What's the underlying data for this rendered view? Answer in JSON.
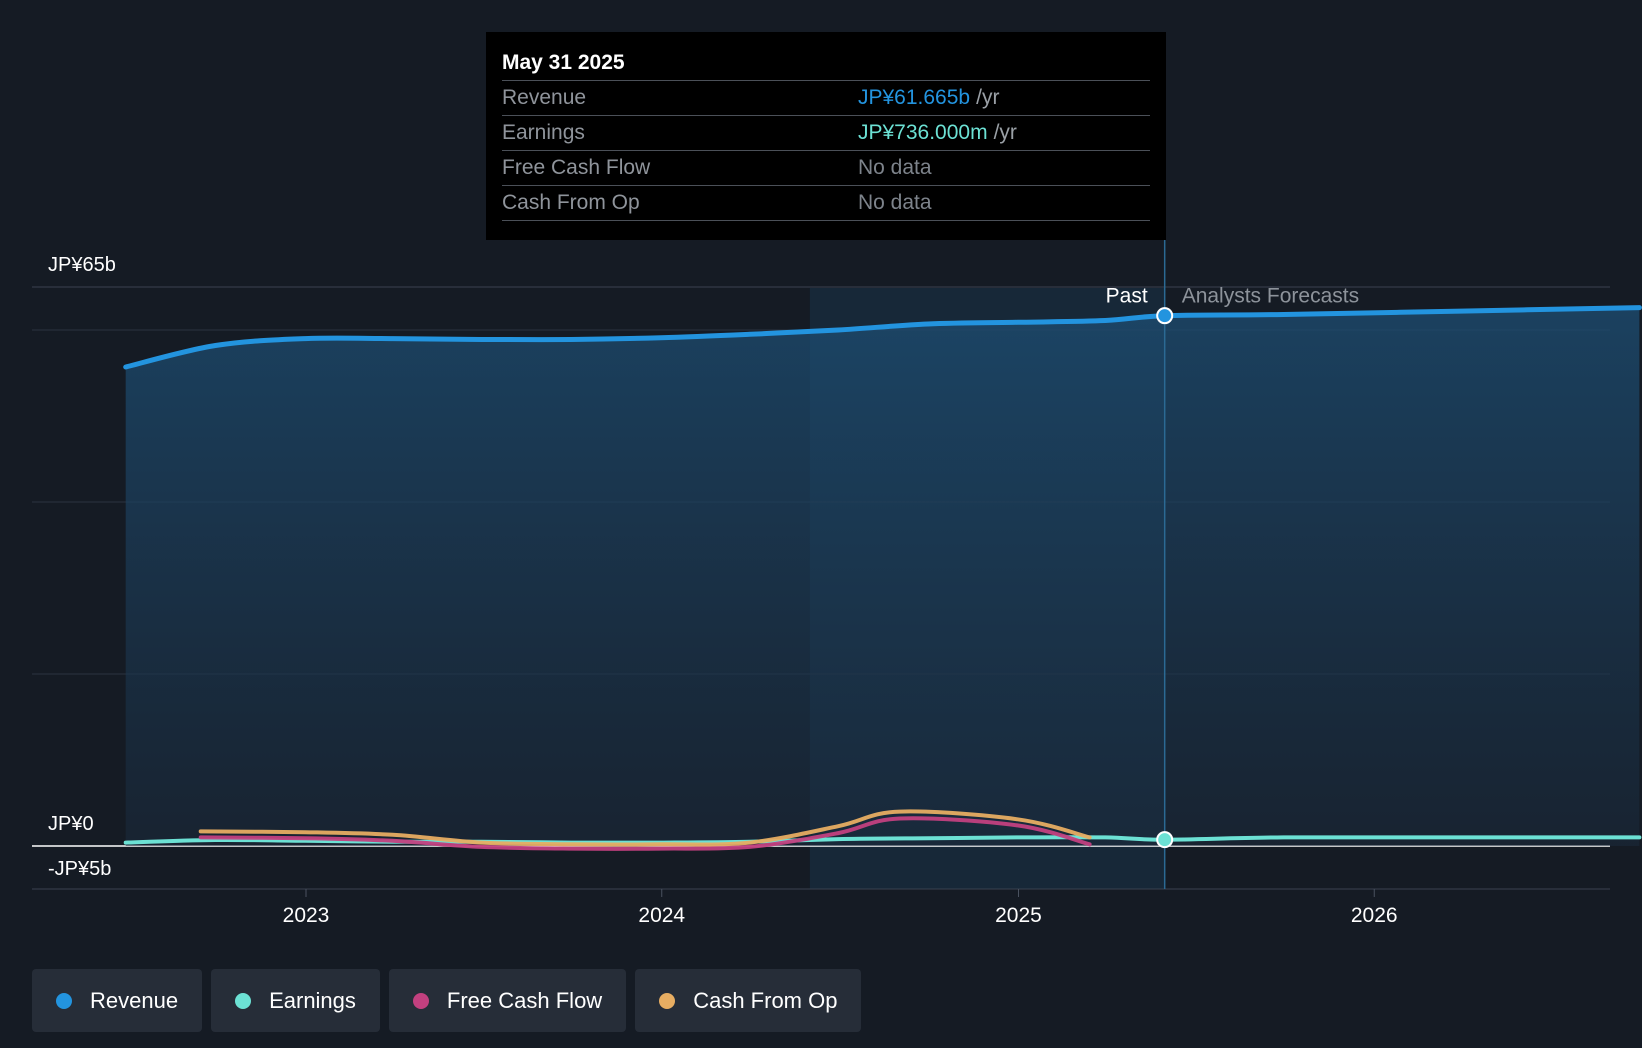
{
  "tooltip": {
    "date": "May 31 2025",
    "rows": [
      {
        "label": "Revenue",
        "value": "JP¥61.665b",
        "unit": "/yr",
        "color": "#2394df"
      },
      {
        "label": "Earnings",
        "value": "JP¥736.000m",
        "unit": "/yr",
        "color": "#6ce1d4"
      },
      {
        "label": "Free Cash Flow",
        "value": "No data",
        "unit": "",
        "color": "#7d838b"
      },
      {
        "label": "Cash From Op",
        "value": "No data",
        "unit": "",
        "color": "#7d838b"
      }
    ]
  },
  "legend": [
    {
      "label": "Revenue",
      "color": "#2394df"
    },
    {
      "label": "Earnings",
      "color": "#6ce1d4"
    },
    {
      "label": "Free Cash Flow",
      "color": "#c2407f"
    },
    {
      "label": "Cash From Op",
      "color": "#e7ad62"
    }
  ],
  "chart_data": {
    "type": "area",
    "x_type": "date",
    "x_ticks": [
      "2023",
      "2024",
      "2025",
      "2026"
    ],
    "y_labels": [
      "JP¥65b",
      "JP¥0",
      "-JP¥5b"
    ],
    "ylim": [
      -5,
      65
    ],
    "y_unit": "JP¥b",
    "past_label": "Past",
    "forecast_label": "Analysts Forecasts",
    "past_end": "2025-05-31",
    "highlight_start": "2024-06-01",
    "series": [
      {
        "name": "Revenue",
        "color": "#2394df",
        "points": [
          [
            "2022-06-30",
            55.7
          ],
          [
            "2022-09-30",
            58.2
          ],
          [
            "2022-12-31",
            59.0
          ],
          [
            "2023-03-31",
            59.0
          ],
          [
            "2023-06-30",
            58.9
          ],
          [
            "2023-09-30",
            58.9
          ],
          [
            "2023-12-31",
            59.1
          ],
          [
            "2024-03-31",
            59.5
          ],
          [
            "2024-06-30",
            60.0
          ],
          [
            "2024-09-30",
            60.7
          ],
          [
            "2024-12-31",
            60.9
          ],
          [
            "2025-03-31",
            61.1
          ],
          [
            "2025-05-31",
            61.665
          ],
          [
            "2025-09-30",
            61.8
          ],
          [
            "2026-03-31",
            62.2
          ],
          [
            "2026-09-30",
            62.6
          ]
        ]
      },
      {
        "name": "Earnings",
        "color": "#6ce1d4",
        "points": [
          [
            "2022-06-30",
            0.4
          ],
          [
            "2022-09-30",
            0.7
          ],
          [
            "2022-12-31",
            0.6
          ],
          [
            "2023-03-31",
            0.5
          ],
          [
            "2023-06-30",
            0.5
          ],
          [
            "2023-09-30",
            0.4
          ],
          [
            "2023-12-31",
            0.4
          ],
          [
            "2024-03-31",
            0.5
          ],
          [
            "2024-06-30",
            0.8
          ],
          [
            "2024-09-30",
            0.9
          ],
          [
            "2024-12-31",
            1.0
          ],
          [
            "2025-03-31",
            1.0
          ],
          [
            "2025-05-31",
            0.736
          ],
          [
            "2025-09-30",
            1.0
          ],
          [
            "2026-03-31",
            1.0
          ],
          [
            "2026-09-30",
            1.0
          ]
        ]
      },
      {
        "name": "Free Cash Flow",
        "color": "#c2407f",
        "points": [
          [
            "2022-09-15",
            1.0
          ],
          [
            "2022-12-31",
            0.9
          ],
          [
            "2023-03-31",
            0.6
          ],
          [
            "2023-06-30",
            -0.1
          ],
          [
            "2023-09-30",
            -0.3
          ],
          [
            "2023-12-31",
            -0.3
          ],
          [
            "2024-03-31",
            -0.1
          ],
          [
            "2024-06-30",
            1.5
          ],
          [
            "2024-09-01",
            3.2
          ],
          [
            "2024-12-31",
            2.4
          ],
          [
            "2025-03-15",
            0.2
          ]
        ]
      },
      {
        "name": "Cash From Op",
        "color": "#e7ad62",
        "points": [
          [
            "2022-09-15",
            1.7
          ],
          [
            "2022-12-31",
            1.6
          ],
          [
            "2023-03-31",
            1.3
          ],
          [
            "2023-06-30",
            0.4
          ],
          [
            "2023-09-30",
            0.2
          ],
          [
            "2023-12-31",
            0.2
          ],
          [
            "2024-03-31",
            0.4
          ],
          [
            "2024-06-30",
            2.3
          ],
          [
            "2024-09-01",
            4.0
          ],
          [
            "2024-12-31",
            3.1
          ],
          [
            "2025-03-15",
            1.0
          ]
        ]
      }
    ]
  }
}
